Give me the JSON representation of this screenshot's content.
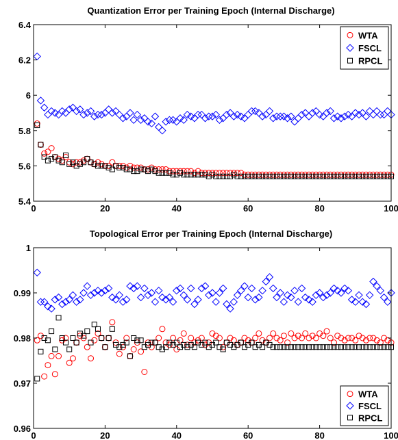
{
  "chart_data": [
    {
      "type": "scatter",
      "title": "Quantization Error per Training Epoch (Internal Discharge)",
      "xlabel": "",
      "ylabel": "",
      "xlim": [
        0,
        100
      ],
      "ylim": [
        5.4,
        6.4
      ],
      "xticks": [
        "0",
        "20",
        "40",
        "60",
        "80",
        "100"
      ],
      "yticks": [
        "5.4",
        "5.6",
        "5.8",
        "6",
        "6.2",
        "6.4"
      ],
      "legend_position": "top-right",
      "grid": false,
      "x": [
        1,
        2,
        3,
        4,
        5,
        6,
        7,
        8,
        9,
        10,
        11,
        12,
        13,
        14,
        15,
        16,
        17,
        18,
        19,
        20,
        21,
        22,
        23,
        24,
        25,
        26,
        27,
        28,
        29,
        30,
        31,
        32,
        33,
        34,
        35,
        36,
        37,
        38,
        39,
        40,
        41,
        42,
        43,
        44,
        45,
        46,
        47,
        48,
        49,
        50,
        51,
        52,
        53,
        54,
        55,
        56,
        57,
        58,
        59,
        60,
        61,
        62,
        63,
        64,
        65,
        66,
        67,
        68,
        69,
        70,
        71,
        72,
        73,
        74,
        75,
        76,
        77,
        78,
        79,
        80,
        81,
        82,
        83,
        84,
        85,
        86,
        87,
        88,
        89,
        90,
        91,
        92,
        93,
        94,
        95,
        96,
        97,
        98,
        99,
        100
      ],
      "series": [
        {
          "name": "WTA",
          "marker": "circle",
          "color": "#ff0000",
          "values": [
            5.84,
            5.72,
            5.67,
            5.68,
            5.7,
            5.65,
            5.64,
            5.63,
            5.65,
            5.62,
            5.61,
            5.62,
            5.62,
            5.63,
            5.64,
            5.62,
            5.61,
            5.62,
            5.61,
            5.6,
            5.6,
            5.62,
            5.6,
            5.6,
            5.6,
            5.59,
            5.6,
            5.59,
            5.59,
            5.59,
            5.58,
            5.58,
            5.59,
            5.58,
            5.58,
            5.58,
            5.58,
            5.57,
            5.57,
            5.57,
            5.57,
            5.57,
            5.57,
            5.57,
            5.56,
            5.57,
            5.56,
            5.56,
            5.56,
            5.56,
            5.56,
            5.56,
            5.56,
            5.56,
            5.56,
            5.56,
            5.56,
            5.56,
            5.55,
            5.55,
            5.55,
            5.55,
            5.55,
            5.55,
            5.55,
            5.55,
            5.55,
            5.55,
            5.55,
            5.55,
            5.55,
            5.55,
            5.55,
            5.55,
            5.55,
            5.55,
            5.55,
            5.55,
            5.55,
            5.55,
            5.55,
            5.55,
            5.55,
            5.55,
            5.55,
            5.55,
            5.55,
            5.55,
            5.55,
            5.55,
            5.55,
            5.55,
            5.55,
            5.55,
            5.55,
            5.55,
            5.55,
            5.55,
            5.55,
            5.55
          ]
        },
        {
          "name": "FSCL",
          "marker": "diamond",
          "color": "#0000ff",
          "values": [
            6.22,
            5.97,
            5.93,
            5.89,
            5.91,
            5.9,
            5.89,
            5.91,
            5.9,
            5.92,
            5.93,
            5.91,
            5.92,
            5.89,
            5.9,
            5.91,
            5.88,
            5.89,
            5.89,
            5.9,
            5.92,
            5.9,
            5.91,
            5.89,
            5.87,
            5.88,
            5.9,
            5.86,
            5.89,
            5.86,
            5.87,
            5.85,
            5.84,
            5.88,
            5.82,
            5.8,
            5.85,
            5.86,
            5.86,
            5.85,
            5.87,
            5.86,
            5.89,
            5.88,
            5.87,
            5.89,
            5.89,
            5.87,
            5.88,
            5.88,
            5.89,
            5.86,
            5.87,
            5.89,
            5.9,
            5.88,
            5.89,
            5.88,
            5.87,
            5.89,
            5.91,
            5.91,
            5.9,
            5.88,
            5.89,
            5.91,
            5.87,
            5.88,
            5.88,
            5.88,
            5.87,
            5.88,
            5.85,
            5.87,
            5.89,
            5.9,
            5.88,
            5.9,
            5.91,
            5.89,
            5.88,
            5.9,
            5.91,
            5.87,
            5.88,
            5.87,
            5.88,
            5.89,
            5.88,
            5.9,
            5.89,
            5.9,
            5.88,
            5.91,
            5.89,
            5.91,
            5.89,
            5.89,
            5.91,
            5.89
          ]
        },
        {
          "name": "RPCL",
          "marker": "square",
          "color": "#000000",
          "values": [
            5.83,
            5.72,
            5.65,
            5.63,
            5.64,
            5.65,
            5.63,
            5.62,
            5.66,
            5.61,
            5.62,
            5.6,
            5.61,
            5.62,
            5.64,
            5.62,
            5.61,
            5.6,
            5.6,
            5.6,
            5.59,
            5.58,
            5.6,
            5.59,
            5.59,
            5.58,
            5.58,
            5.57,
            5.57,
            5.58,
            5.58,
            5.57,
            5.58,
            5.57,
            5.56,
            5.56,
            5.56,
            5.56,
            5.55,
            5.55,
            5.56,
            5.55,
            5.55,
            5.55,
            5.55,
            5.55,
            5.55,
            5.55,
            5.54,
            5.55,
            5.54,
            5.54,
            5.54,
            5.54,
            5.54,
            5.55,
            5.54,
            5.54,
            5.54,
            5.54,
            5.54,
            5.54,
            5.54,
            5.54,
            5.54,
            5.54,
            5.54,
            5.54,
            5.54,
            5.54,
            5.54,
            5.54,
            5.54,
            5.54,
            5.54,
            5.54,
            5.54,
            5.54,
            5.54,
            5.54,
            5.54,
            5.54,
            5.54,
            5.54,
            5.54,
            5.54,
            5.54,
            5.54,
            5.54,
            5.54,
            5.54,
            5.54,
            5.54,
            5.54,
            5.54,
            5.54,
            5.54,
            5.54,
            5.54,
            5.54
          ]
        }
      ]
    },
    {
      "type": "scatter",
      "title": "Topological Error per Training Epoch (Internal Discharge)",
      "xlabel": "",
      "ylabel": "",
      "xlim": [
        0,
        100
      ],
      "ylim": [
        0.96,
        1.0
      ],
      "xticks": [
        "0",
        "20",
        "40",
        "60",
        "80",
        "100"
      ],
      "yticks": [
        "0.96",
        "0.97",
        "0.98",
        "0.99",
        "1"
      ],
      "legend_position": "bottom-right",
      "grid": false,
      "x": [
        1,
        2,
        3,
        4,
        5,
        6,
        7,
        8,
        9,
        10,
        11,
        12,
        13,
        14,
        15,
        16,
        17,
        18,
        19,
        20,
        21,
        22,
        23,
        24,
        25,
        26,
        27,
        28,
        29,
        30,
        31,
        32,
        33,
        34,
        35,
        36,
        37,
        38,
        39,
        40,
        41,
        42,
        43,
        44,
        45,
        46,
        47,
        48,
        49,
        50,
        51,
        52,
        53,
        54,
        55,
        56,
        57,
        58,
        59,
        60,
        61,
        62,
        63,
        64,
        65,
        66,
        67,
        68,
        69,
        70,
        71,
        72,
        73,
        74,
        75,
        76,
        77,
        78,
        79,
        80,
        81,
        82,
        83,
        84,
        85,
        86,
        87,
        88,
        89,
        90,
        91,
        92,
        93,
        94,
        95,
        96,
        97,
        98,
        99,
        100
      ],
      "series": [
        {
          "name": "WTA",
          "marker": "circle",
          "color": "#ff0000",
          "values": [
            0.9795,
            0.9805,
            0.9715,
            0.974,
            0.976,
            0.972,
            0.976,
            0.9795,
            0.98,
            0.9745,
            0.9755,
            0.979,
            0.9805,
            0.98,
            0.978,
            0.9755,
            0.9795,
            0.981,
            0.98,
            0.978,
            0.98,
            0.9835,
            0.979,
            0.9765,
            0.978,
            0.98,
            0.976,
            0.9775,
            0.979,
            0.977,
            0.9725,
            0.979,
            0.978,
            0.979,
            0.98,
            0.982,
            0.979,
            0.9785,
            0.98,
            0.9775,
            0.9795,
            0.981,
            0.9785,
            0.98,
            0.979,
            0.9795,
            0.98,
            0.9785,
            0.979,
            0.981,
            0.9805,
            0.98,
            0.978,
            0.979,
            0.98,
            0.9795,
            0.9785,
            0.979,
            0.98,
            0.9795,
            0.979,
            0.98,
            0.981,
            0.9795,
            0.979,
            0.98,
            0.981,
            0.98,
            0.9795,
            0.9805,
            0.979,
            0.981,
            0.98,
            0.9805,
            0.98,
            0.981,
            0.98,
            0.9805,
            0.98,
            0.981,
            0.9805,
            0.9815,
            0.98,
            0.979,
            0.9805,
            0.98,
            0.9795,
            0.98,
            0.98,
            0.9795,
            0.9805,
            0.98,
            0.9795,
            0.98,
            0.98,
            0.9795,
            0.979,
            0.98,
            0.9795,
            0.979
          ]
        },
        {
          "name": "FSCL",
          "marker": "diamond",
          "color": "#0000ff",
          "values": [
            0.9945,
            0.988,
            0.988,
            0.987,
            0.9865,
            0.9885,
            0.989,
            0.9875,
            0.988,
            0.9885,
            0.9895,
            0.988,
            0.9885,
            0.99,
            0.9915,
            0.9895,
            0.99,
            0.9905,
            0.99,
            0.9905,
            0.991,
            0.989,
            0.9885,
            0.9895,
            0.988,
            0.9885,
            0.9915,
            0.991,
            0.9915,
            0.989,
            0.991,
            0.9895,
            0.99,
            0.988,
            0.9905,
            0.989,
            0.9885,
            0.989,
            0.988,
            0.9905,
            0.991,
            0.9895,
            0.9885,
            0.991,
            0.9875,
            0.9885,
            0.991,
            0.9915,
            0.9895,
            0.99,
            0.988,
            0.99,
            0.991,
            0.9875,
            0.9865,
            0.988,
            0.9895,
            0.9905,
            0.9915,
            0.989,
            0.991,
            0.9885,
            0.989,
            0.9905,
            0.9925,
            0.9935,
            0.991,
            0.989,
            0.99,
            0.988,
            0.9895,
            0.989,
            0.9905,
            0.988,
            0.991,
            0.989,
            0.9885,
            0.988,
            0.9895,
            0.99,
            0.989,
            0.9895,
            0.99,
            0.991,
            0.9905,
            0.99,
            0.991,
            0.9905,
            0.9885,
            0.988,
            0.9895,
            0.988,
            0.9875,
            0.9895,
            0.9925,
            0.9915,
            0.9905,
            0.989,
            0.988,
            0.99
          ]
        },
        {
          "name": "RPCL",
          "marker": "square",
          "color": "#000000",
          "values": [
            0.971,
            0.977,
            0.98,
            0.9795,
            0.9815,
            0.9775,
            0.9845,
            0.98,
            0.979,
            0.9775,
            0.98,
            0.979,
            0.981,
            0.9805,
            0.9815,
            0.979,
            0.983,
            0.982,
            0.98,
            0.978,
            0.98,
            0.982,
            0.9785,
            0.978,
            0.9785,
            0.979,
            0.976,
            0.98,
            0.9795,
            0.9795,
            0.978,
            0.9785,
            0.979,
            0.979,
            0.978,
            0.9775,
            0.978,
            0.979,
            0.9785,
            0.979,
            0.978,
            0.9785,
            0.978,
            0.9785,
            0.978,
            0.979,
            0.9785,
            0.979,
            0.978,
            0.9785,
            0.979,
            0.978,
            0.9775,
            0.979,
            0.9785,
            0.978,
            0.9785,
            0.979,
            0.978,
            0.9785,
            0.979,
            0.978,
            0.9785,
            0.978,
            0.979,
            0.9785,
            0.978,
            0.978,
            0.978,
            0.978,
            0.978,
            0.978,
            0.978,
            0.978,
            0.978,
            0.978,
            0.978,
            0.978,
            0.978,
            0.978,
            0.978,
            0.978,
            0.978,
            0.978,
            0.978,
            0.978,
            0.978,
            0.978,
            0.978,
            0.978,
            0.978,
            0.978,
            0.978,
            0.978,
            0.978,
            0.978,
            0.978,
            0.978,
            0.978,
            0.978
          ]
        }
      ]
    }
  ]
}
